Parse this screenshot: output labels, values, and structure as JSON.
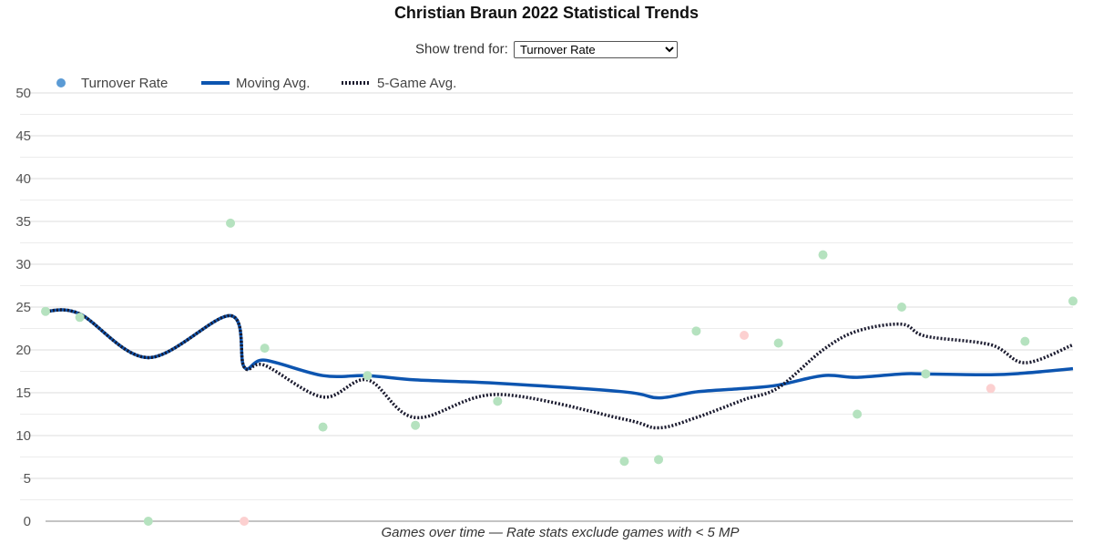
{
  "controls": {
    "label": "Show trend for:",
    "options": [
      "Turnover Rate"
    ],
    "selected": "Turnover Rate"
  },
  "colors": {
    "moving_avg": "#0d55b0",
    "five_game_avg": "#1a1a2e",
    "legend_dot": "#5b9bd5",
    "point_green": "#b5e2bf",
    "point_red": "#fcd0d0",
    "grid": "#dddddd"
  },
  "chart_data": {
    "type": "line",
    "title": "Christian Braun 2022 Statistical Trends",
    "xlabel": "Games over time — Rate stats exclude games with < 5 MP",
    "ylabel": "",
    "ylim": [
      0,
      50
    ],
    "yticks": [
      "0",
      "5",
      "10",
      "15",
      "20",
      "25",
      "30",
      "35",
      "40",
      "45",
      "50"
    ],
    "grid": true,
    "legend": [
      "Turnover Rate",
      "Moving Avg.",
      "5-Game Avg."
    ],
    "legend_position": "top-left",
    "games": 30,
    "points": [
      {
        "game": 0,
        "value": 24.5,
        "color": "green"
      },
      {
        "game": 1,
        "value": 23.8,
        "color": "green"
      },
      {
        "game": 3,
        "value": 0.0,
        "color": "green"
      },
      {
        "game": 5.4,
        "value": 34.8,
        "color": "green"
      },
      {
        "game": 5.8,
        "value": 0.0,
        "color": "red"
      },
      {
        "game": 6.4,
        "value": 20.2,
        "color": "green"
      },
      {
        "game": 8.1,
        "value": 11.0,
        "color": "green"
      },
      {
        "game": 9.4,
        "value": 17.0,
        "color": "green"
      },
      {
        "game": 10.8,
        "value": 11.2,
        "color": "green"
      },
      {
        "game": 13.2,
        "value": 14.0,
        "color": "green"
      },
      {
        "game": 16.9,
        "value": 7.0,
        "color": "green"
      },
      {
        "game": 17.9,
        "value": 7.2,
        "color": "green"
      },
      {
        "game": 19.0,
        "value": 22.2,
        "color": "green"
      },
      {
        "game": 20.4,
        "value": 21.7,
        "color": "red"
      },
      {
        "game": 21.4,
        "value": 20.8,
        "color": "green"
      },
      {
        "game": 22.7,
        "value": 31.1,
        "color": "green"
      },
      {
        "game": 23.7,
        "value": 12.5,
        "color": "green"
      },
      {
        "game": 25.0,
        "value": 25.0,
        "color": "green"
      },
      {
        "game": 25.7,
        "value": 17.2,
        "color": "green"
      },
      {
        "game": 27.6,
        "value": 15.5,
        "color": "red"
      },
      {
        "game": 28.6,
        "value": 21.0,
        "color": "green"
      },
      {
        "game": 30.0,
        "value": 25.7,
        "color": "green"
      }
    ],
    "series": [
      {
        "name": "Moving Avg.",
        "x": [
          0,
          1,
          3,
          5.4,
          5.8,
          6.4,
          8.1,
          9.4,
          10.8,
          13.2,
          16.9,
          17.9,
          19.0,
          20.4,
          21.4,
          22.7,
          23.7,
          25.0,
          25.7,
          27.6,
          28.6,
          30.0
        ],
        "values": [
          24.5,
          24.2,
          19.1,
          24.0,
          18.0,
          18.8,
          17.0,
          17.0,
          16.5,
          16.1,
          15.1,
          14.4,
          15.1,
          15.5,
          15.9,
          17.0,
          16.8,
          17.2,
          17.2,
          17.1,
          17.3,
          17.8
        ]
      },
      {
        "name": "5-Game Avg.",
        "x": [
          0,
          1,
          3,
          5.4,
          5.8,
          6.4,
          8.1,
          9.4,
          10.8,
          13.2,
          16.9,
          17.9,
          19.0,
          20.4,
          21.4,
          22.7,
          23.7,
          25.0,
          25.7,
          27.6,
          28.6,
          30.0
        ],
        "values": [
          24.5,
          24.2,
          19.1,
          24.0,
          18.0,
          18.2,
          14.5,
          16.5,
          12.1,
          14.8,
          11.9,
          10.9,
          12.1,
          14.2,
          15.6,
          20.0,
          22.2,
          23.0,
          21.6,
          20.6,
          18.5,
          20.6
        ]
      }
    ]
  }
}
